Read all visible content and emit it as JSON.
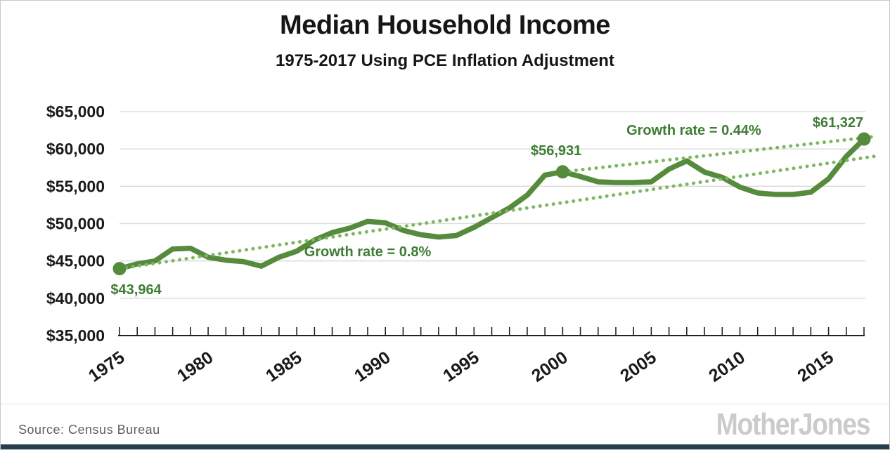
{
  "header": {
    "title": "Median Household Income",
    "subtitle": "1975-2017 Using PCE Inflation Adjustment"
  },
  "footer": {
    "source": "Source:  Census Bureau",
    "logo": "MotherJones"
  },
  "colors": {
    "line": "#568b3e",
    "trend_dotted": "#7fb761",
    "green_text": "#3e7d34",
    "axis_text": "#1a1a1a",
    "grid": "#d9d9d9",
    "axis": "#222222",
    "source_text": "#5f5f5f",
    "logo_text": "#cbcbcb",
    "bottom_bar": "#263f4d"
  },
  "chart_data": {
    "type": "line",
    "title": "Median Household Income",
    "subtitle": "1975-2017 Using PCE Inflation Adjustment",
    "xlabel": "",
    "ylabel": "",
    "ylim": [
      35000,
      65000
    ],
    "ytick_step": 5000,
    "ytick_format": "dollar_thousands",
    "grid": "horizontal",
    "legend": "none",
    "x": [
      1975,
      1976,
      1977,
      1978,
      1979,
      1980,
      1981,
      1982,
      1983,
      1984,
      1985,
      1986,
      1987,
      1988,
      1989,
      1990,
      1991,
      1992,
      1993,
      1994,
      1995,
      1996,
      1997,
      1998,
      1999,
      2000,
      2001,
      2002,
      2003,
      2004,
      2005,
      2006,
      2007,
      2008,
      2009,
      2010,
      2011,
      2012,
      2013,
      2014,
      2015,
      2016,
      2017
    ],
    "values": [
      43964,
      44600,
      45000,
      46600,
      46700,
      45500,
      45100,
      44900,
      44300,
      45500,
      46300,
      47800,
      48800,
      49400,
      50300,
      50100,
      49100,
      48500,
      48200,
      48400,
      49500,
      50800,
      52100,
      53800,
      56500,
      56931,
      56300,
      55600,
      55500,
      55500,
      55600,
      57300,
      58400,
      56900,
      56200,
      54900,
      54100,
      53900,
      53900,
      54200,
      56000,
      59000,
      61327
    ],
    "xticks_every_year": true,
    "xtick_labels": [
      "1975",
      "1980",
      "1985",
      "1990",
      "1995",
      "2000",
      "2005",
      "2010",
      "2015"
    ],
    "xtick_label_years": [
      1975,
      1980,
      1985,
      1990,
      1995,
      2000,
      2005,
      2010,
      2015
    ],
    "marker_years": [
      1975,
      2000,
      2017
    ],
    "point_labels": [
      {
        "text": "$43,964",
        "year": 1974.5,
        "value": 40550,
        "anchor": "start"
      },
      {
        "text": "$56,931",
        "year": 1998.2,
        "value": 59170,
        "anchor": "start"
      },
      {
        "text": "$61,327",
        "year": 2014.1,
        "value": 62930,
        "anchor": "start"
      }
    ],
    "trend_lines": [
      {
        "label": "Growth rate = 0.8%",
        "start": {
          "year": 1975,
          "value": 43964
        },
        "end": {
          "year": 2017.75,
          "value": 59075
        },
        "label_pos": {
          "year": 1989.0,
          "value": 45630
        }
      },
      {
        "label": "Growth rate = 0.44%",
        "start": {
          "year": 2000,
          "value": 56931
        },
        "end": {
          "year": 2017.75,
          "value": 61700
        },
        "label_pos": {
          "year": 2007.4,
          "value": 61900
        }
      }
    ]
  }
}
